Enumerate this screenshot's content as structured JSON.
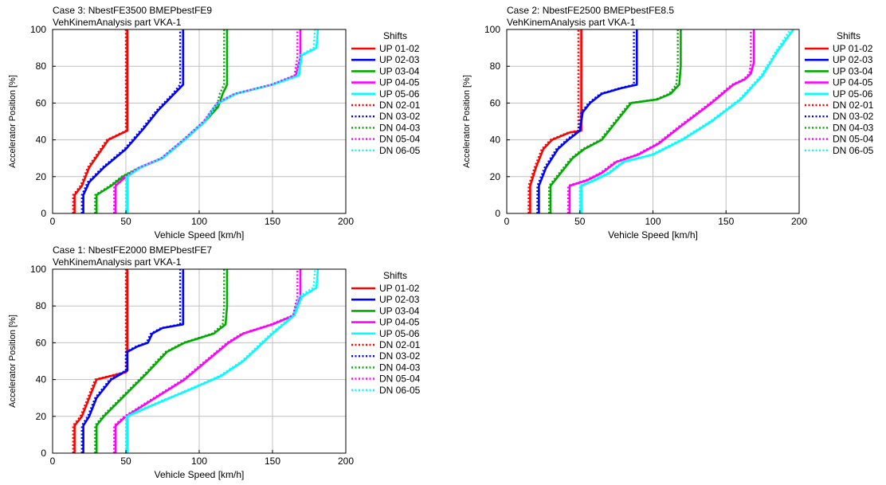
{
  "chart_data": [
    {
      "type": "line",
      "title": "Case 3: NbestFE3500 BMEPbestFE9",
      "subtitle": "VehKinemAnalysis part VKA-1",
      "xlabel": "Vehicle Speed [km/h]",
      "ylabel": "Accelerator Position [%]",
      "xlim": [
        0,
        200
      ],
      "ylim": [
        0,
        100
      ],
      "xticks": [
        0,
        50,
        100,
        150,
        200
      ],
      "yticks": [
        0,
        20,
        40,
        60,
        80,
        100
      ],
      "grid": true,
      "legend_title": "Shifts",
      "legend_position": "right",
      "series": [
        {
          "name": "UP 01-02",
          "color": "#ff0000",
          "dash": "solid",
          "x": [
            15,
            15,
            20,
            25,
            38,
            51,
            51,
            51
          ],
          "y": [
            0,
            10,
            15,
            25,
            40,
            45,
            60,
            100
          ]
        },
        {
          "name": "UP 02-03",
          "color": "#0000ff",
          "dash": "solid",
          "x": [
            21,
            21,
            25,
            35,
            50,
            62,
            72,
            83,
            89,
            89
          ],
          "y": [
            0,
            10,
            17,
            25,
            35,
            46,
            56,
            65,
            70,
            100
          ]
        },
        {
          "name": "UP 03-04",
          "color": "#00aa00",
          "dash": "solid",
          "x": [
            30,
            30,
            40,
            48,
            60,
            75,
            90,
            104,
            113,
            116,
            119,
            119
          ],
          "y": [
            0,
            10,
            15,
            20,
            25,
            30,
            40,
            50,
            58,
            65,
            70,
            100
          ]
        },
        {
          "name": "UP 04-05",
          "color": "#ff00ff",
          "dash": "solid",
          "x": [
            43,
            43,
            50,
            60,
            75,
            90,
            104,
            113,
            125,
            150,
            166,
            169,
            169
          ],
          "y": [
            0,
            15,
            20,
            25,
            30,
            40,
            50,
            60,
            65,
            70,
            75,
            85,
            100
          ]
        },
        {
          "name": "UP 05-06",
          "color": "#00ffff",
          "dash": "solid",
          "x": [
            51,
            51,
            60,
            75,
            90,
            104,
            113,
            125,
            150,
            168,
            170,
            180,
            181
          ],
          "y": [
            0,
            20,
            25,
            30,
            40,
            50,
            60,
            65,
            70,
            75,
            86,
            90,
            100
          ]
        },
        {
          "name": "DN 02-01",
          "color": "#ff0000",
          "dash": "dotted",
          "x": [
            14,
            14,
            19,
            24,
            37,
            50,
            50,
            50
          ],
          "y": [
            0,
            10,
            15,
            25,
            40,
            45,
            60,
            100
          ]
        },
        {
          "name": "DN 03-02",
          "color": "#0000ff",
          "dash": "dotted",
          "x": [
            20,
            20,
            24,
            34,
            49,
            61,
            71,
            82,
            87,
            87
          ],
          "y": [
            0,
            10,
            17,
            25,
            35,
            46,
            56,
            65,
            70,
            100
          ]
        },
        {
          "name": "DN 04-03",
          "color": "#00aa00",
          "dash": "dotted",
          "x": [
            29,
            29,
            39,
            47,
            59,
            74,
            89,
            103,
            112,
            114,
            117,
            117
          ],
          "y": [
            0,
            10,
            15,
            20,
            25,
            30,
            40,
            50,
            58,
            65,
            70,
            100
          ]
        },
        {
          "name": "DN 05-04",
          "color": "#ff00ff",
          "dash": "dotted",
          "x": [
            42,
            42,
            49,
            59,
            74,
            89,
            103,
            112,
            124,
            149,
            165,
            167,
            167
          ],
          "y": [
            0,
            15,
            20,
            25,
            30,
            40,
            50,
            60,
            65,
            70,
            75,
            85,
            100
          ]
        },
        {
          "name": "DN 06-05",
          "color": "#00ffff",
          "dash": "dotted",
          "x": [
            50,
            50,
            59,
            74,
            89,
            103,
            112,
            124,
            149,
            167,
            169,
            178,
            179
          ],
          "y": [
            0,
            20,
            25,
            30,
            40,
            50,
            60,
            65,
            70,
            75,
            86,
            90,
            100
          ]
        }
      ]
    },
    {
      "type": "line",
      "title": "Case 2: NbestFE2500 BMEPbestFE8.5",
      "subtitle": "VehKinemAnalysis part VKA-1",
      "xlabel": "Vehicle Speed [km/h]",
      "ylabel": "Accelerator Position [%]",
      "xlim": [
        0,
        200
      ],
      "ylim": [
        0,
        100
      ],
      "xticks": [
        0,
        50,
        100,
        150,
        200
      ],
      "yticks": [
        0,
        20,
        40,
        60,
        80,
        100
      ],
      "grid": true,
      "legend_title": "Shifts",
      "legend_position": "right",
      "series": [
        {
          "name": "UP 01-02",
          "color": "#ff0000",
          "dash": "solid",
          "x": [
            16,
            16,
            20,
            25,
            31,
            43,
            51,
            51,
            51
          ],
          "y": [
            0,
            15,
            25,
            35,
            40,
            44,
            45,
            60,
            100
          ]
        },
        {
          "name": "UP 02-03",
          "color": "#0000ff",
          "dash": "solid",
          "x": [
            22,
            22,
            27,
            35,
            42,
            50,
            52,
            57,
            65,
            78,
            89,
            89
          ],
          "y": [
            0,
            15,
            25,
            35,
            40,
            45,
            55,
            60,
            65,
            68,
            70,
            100
          ]
        },
        {
          "name": "UP 03-04",
          "color": "#00aa00",
          "dash": "solid",
          "x": [
            30,
            30,
            35,
            45,
            53,
            65,
            75,
            85,
            103,
            112,
            118,
            119,
            119
          ],
          "y": [
            0,
            15,
            20,
            30,
            35,
            40,
            50,
            60,
            62,
            65,
            70,
            80,
            100
          ]
        },
        {
          "name": "UP 04-05",
          "color": "#ff00ff",
          "dash": "solid",
          "x": [
            43,
            43,
            55,
            65,
            75,
            90,
            104,
            120,
            140,
            155,
            163,
            167,
            169,
            169
          ],
          "y": [
            0,
            15,
            18,
            22,
            28,
            32,
            38,
            48,
            60,
            70,
            73,
            76,
            82,
            100
          ]
        },
        {
          "name": "UP 05-06",
          "color": "#00ffff",
          "dash": "solid",
          "x": [
            51,
            51,
            60,
            70,
            80,
            100,
            120,
            140,
            160,
            175,
            185,
            196
          ],
          "y": [
            0,
            15,
            18,
            22,
            28,
            32,
            40,
            50,
            62,
            75,
            88,
            100
          ]
        },
        {
          "name": "DN 02-01",
          "color": "#ff0000",
          "dash": "dotted",
          "x": [
            15,
            15,
            19,
            24,
            30,
            42,
            49,
            49,
            49
          ],
          "y": [
            0,
            15,
            25,
            35,
            40,
            44,
            45,
            60,
            100
          ]
        },
        {
          "name": "DN 03-02",
          "color": "#0000ff",
          "dash": "dotted",
          "x": [
            21,
            21,
            26,
            34,
            41,
            49,
            51,
            56,
            64,
            77,
            87,
            87
          ],
          "y": [
            0,
            15,
            25,
            35,
            40,
            45,
            55,
            60,
            65,
            68,
            70,
            100
          ]
        },
        {
          "name": "DN 04-03",
          "color": "#00aa00",
          "dash": "dotted",
          "x": [
            29,
            29,
            34,
            44,
            52,
            64,
            74,
            84,
            102,
            111,
            116,
            117,
            117
          ],
          "y": [
            0,
            15,
            20,
            30,
            35,
            40,
            50,
            60,
            62,
            65,
            70,
            80,
            100
          ]
        },
        {
          "name": "DN 05-04",
          "color": "#ff00ff",
          "dash": "dotted",
          "x": [
            42,
            42,
            54,
            64,
            74,
            89,
            103,
            119,
            139,
            154,
            162,
            166,
            167,
            167
          ],
          "y": [
            0,
            15,
            18,
            22,
            28,
            32,
            38,
            48,
            60,
            70,
            73,
            76,
            82,
            100
          ]
        },
        {
          "name": "DN 06-05",
          "color": "#00ffff",
          "dash": "dotted",
          "x": [
            50,
            50,
            59,
            69,
            79,
            99,
            119,
            139,
            159,
            174,
            184,
            194
          ],
          "y": [
            0,
            15,
            18,
            22,
            28,
            32,
            40,
            50,
            62,
            75,
            88,
            100
          ]
        }
      ]
    },
    {
      "type": "line",
      "title": "Case 1: NbestFE2000 BMEPbestFE7",
      "subtitle": "VehKinemAnalysis part VKA-1",
      "xlabel": "Vehicle Speed [km/h]",
      "ylabel": "Accelerator Position [%]",
      "xlim": [
        0,
        200
      ],
      "ylim": [
        0,
        100
      ],
      "xticks": [
        0,
        50,
        100,
        150,
        200
      ],
      "yticks": [
        0,
        20,
        40,
        60,
        80,
        100
      ],
      "grid": true,
      "legend_title": "Shifts",
      "legend_position": "right",
      "series": [
        {
          "name": "UP 01-02",
          "color": "#ff0000",
          "dash": "solid",
          "x": [
            15,
            15,
            20,
            25,
            30,
            40,
            50,
            51,
            51
          ],
          "y": [
            0,
            15,
            20,
            30,
            40,
            42,
            44,
            45,
            100
          ]
        },
        {
          "name": "UP 02-03",
          "color": "#0000ff",
          "dash": "solid",
          "x": [
            21,
            21,
            25,
            30,
            40,
            51,
            51,
            58,
            65,
            68,
            75,
            89,
            89
          ],
          "y": [
            0,
            15,
            20,
            30,
            40,
            45,
            55,
            58,
            60,
            65,
            68,
            70,
            100
          ]
        },
        {
          "name": "UP 03-04",
          "color": "#00aa00",
          "dash": "solid",
          "x": [
            30,
            30,
            35,
            45,
            55,
            65,
            72,
            78,
            90,
            110,
            118,
            119,
            119
          ],
          "y": [
            0,
            15,
            20,
            28,
            36,
            44,
            50,
            55,
            60,
            65,
            70,
            80,
            100
          ]
        },
        {
          "name": "UP 04-05",
          "color": "#ff00ff",
          "dash": "solid",
          "x": [
            43,
            43,
            50,
            60,
            70,
            90,
            105,
            120,
            130,
            150,
            165,
            169,
            169
          ],
          "y": [
            0,
            15,
            20,
            25,
            30,
            40,
            50,
            60,
            65,
            70,
            75,
            85,
            100
          ]
        },
        {
          "name": "UP 05-06",
          "color": "#00ffff",
          "dash": "solid",
          "x": [
            51,
            51,
            65,
            80,
            95,
            115,
            130,
            150,
            165,
            170,
            180,
            181
          ],
          "y": [
            0,
            20,
            25,
            30,
            35,
            42,
            50,
            65,
            75,
            85,
            90,
            100
          ]
        },
        {
          "name": "DN 02-01",
          "color": "#ff0000",
          "dash": "dotted",
          "x": [
            14,
            14,
            19,
            24,
            29,
            39,
            49,
            50,
            50
          ],
          "y": [
            0,
            15,
            20,
            30,
            40,
            42,
            44,
            45,
            100
          ]
        },
        {
          "name": "DN 03-02",
          "color": "#0000ff",
          "dash": "dotted",
          "x": [
            20,
            20,
            24,
            29,
            39,
            50,
            50,
            57,
            64,
            67,
            74,
            87,
            87
          ],
          "y": [
            0,
            15,
            20,
            30,
            40,
            45,
            55,
            58,
            60,
            65,
            68,
            70,
            100
          ]
        },
        {
          "name": "DN 04-03",
          "color": "#00aa00",
          "dash": "dotted",
          "x": [
            29,
            29,
            34,
            44,
            54,
            64,
            71,
            77,
            89,
            109,
            116,
            117,
            117
          ],
          "y": [
            0,
            15,
            20,
            28,
            36,
            44,
            50,
            55,
            60,
            65,
            70,
            80,
            100
          ]
        },
        {
          "name": "DN 05-04",
          "color": "#ff00ff",
          "dash": "dotted",
          "x": [
            42,
            42,
            49,
            59,
            69,
            89,
            104,
            119,
            129,
            149,
            164,
            167,
            167
          ],
          "y": [
            0,
            15,
            20,
            25,
            30,
            40,
            50,
            60,
            65,
            70,
            75,
            85,
            100
          ]
        },
        {
          "name": "DN 06-05",
          "color": "#00ffff",
          "dash": "dotted",
          "x": [
            50,
            50,
            64,
            79,
            94,
            114,
            129,
            149,
            164,
            168,
            178,
            179
          ],
          "y": [
            0,
            20,
            25,
            30,
            35,
            42,
            50,
            65,
            75,
            85,
            90,
            100
          ]
        }
      ]
    }
  ]
}
